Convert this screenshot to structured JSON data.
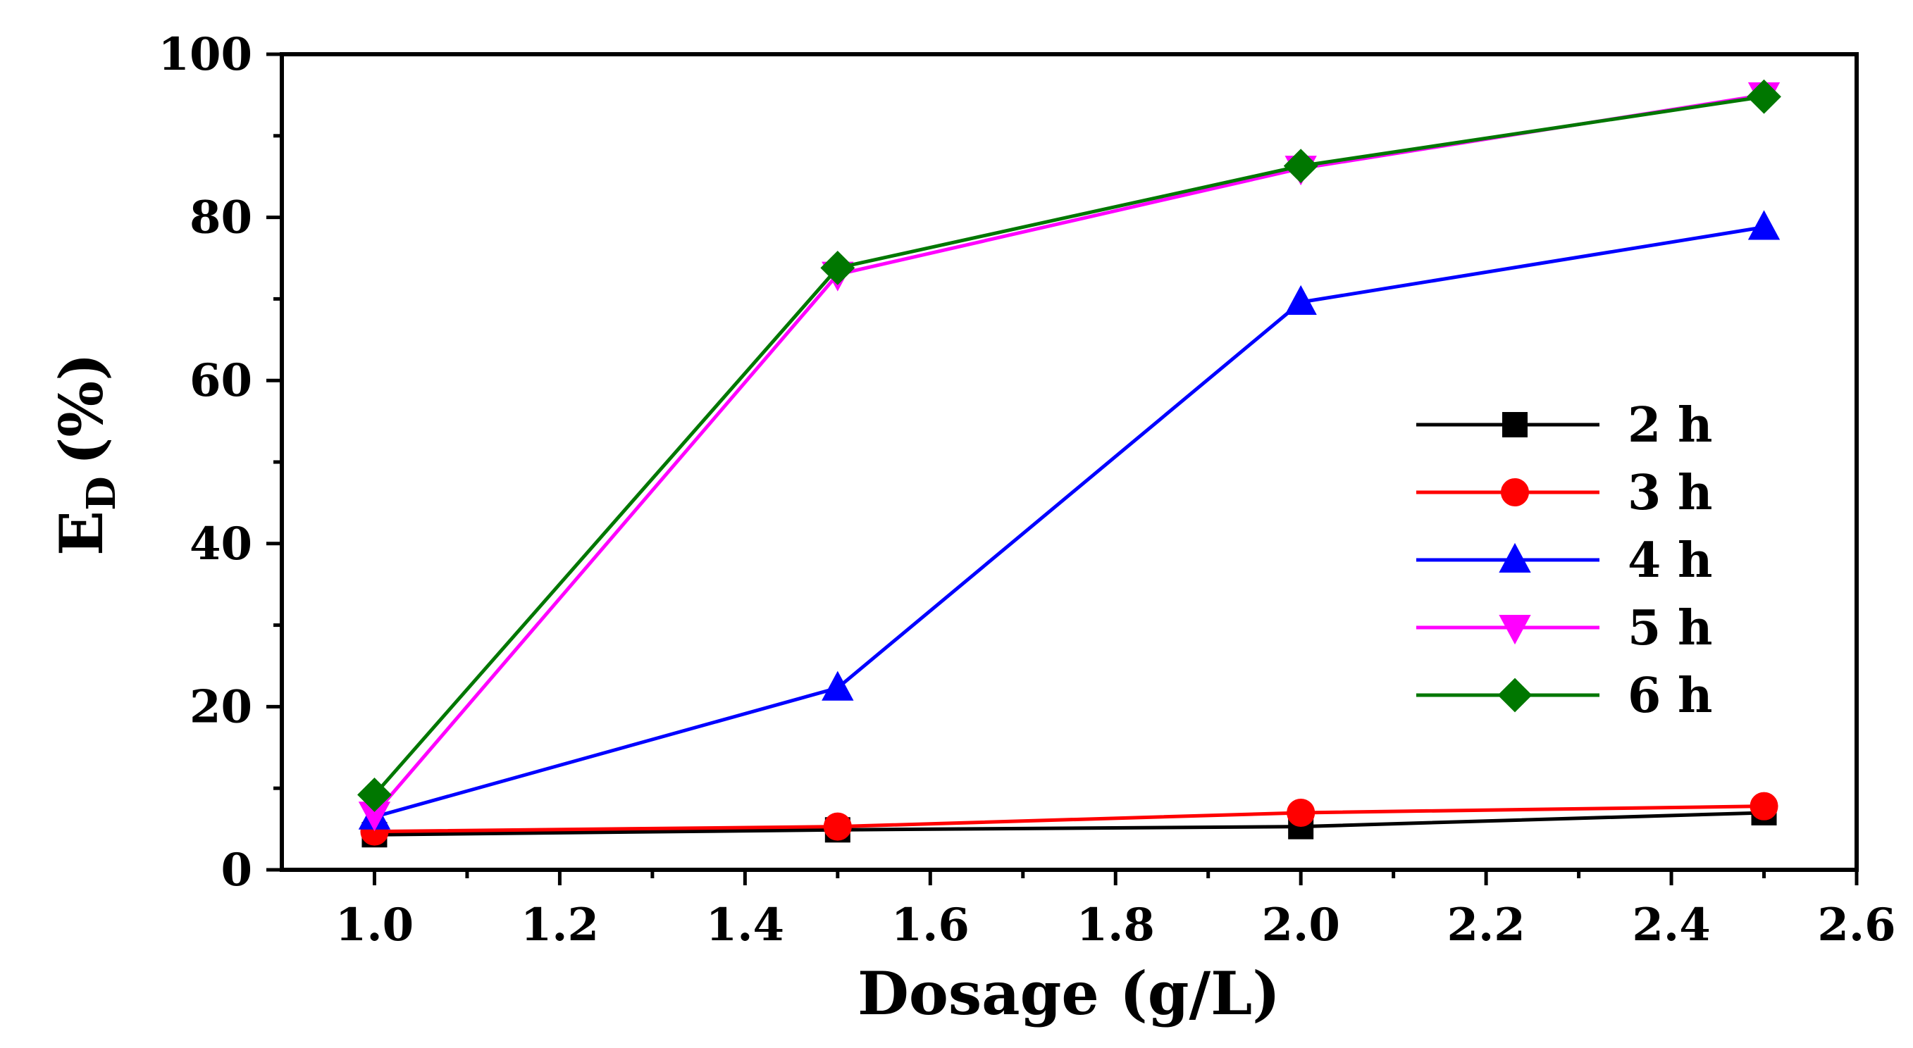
{
  "chart_data": {
    "type": "line",
    "xlabel": "Dosage (g/L)",
    "ylabel_main": "E",
    "ylabel_sub": "D",
    "ylabel_tail": "(%)",
    "xlim": [
      0.9,
      2.6
    ],
    "ylim": [
      0,
      100
    ],
    "x_ticks": [
      1.0,
      1.2,
      1.4,
      1.6,
      1.8,
      2.0,
      2.2,
      2.4,
      2.6
    ],
    "x_tick_labels": [
      "1.0",
      "1.2",
      "1.4",
      "1.6",
      "1.8",
      "2.0",
      "2.2",
      "2.4",
      "2.6"
    ],
    "y_ticks": [
      0,
      20,
      40,
      60,
      80,
      100
    ],
    "y_tick_labels": [
      "0",
      "20",
      "40",
      "60",
      "80",
      "100"
    ],
    "legend_position": "center-right",
    "x": [
      1.0,
      1.5,
      2.0,
      2.5
    ],
    "series": [
      {
        "name": "2 h",
        "color": "#000000",
        "marker": "square",
        "values": [
          4.3,
          4.9,
          5.3,
          7.0
        ]
      },
      {
        "name": "3 h",
        "color": "#ff0000",
        "marker": "circle",
        "values": [
          4.7,
          5.3,
          7.0,
          7.8
        ]
      },
      {
        "name": "4 h",
        "color": "#0000ff",
        "marker": "triangle-up",
        "values": [
          6.5,
          22.3,
          69.6,
          78.8
        ]
      },
      {
        "name": "5 h",
        "color": "#ff00ff",
        "marker": "triangle-down",
        "values": [
          6.8,
          73.0,
          86.0,
          95.0
        ]
      },
      {
        "name": "6 h",
        "color": "#007700",
        "marker": "diamond",
        "values": [
          9.2,
          73.8,
          86.3,
          94.8
        ]
      }
    ]
  }
}
